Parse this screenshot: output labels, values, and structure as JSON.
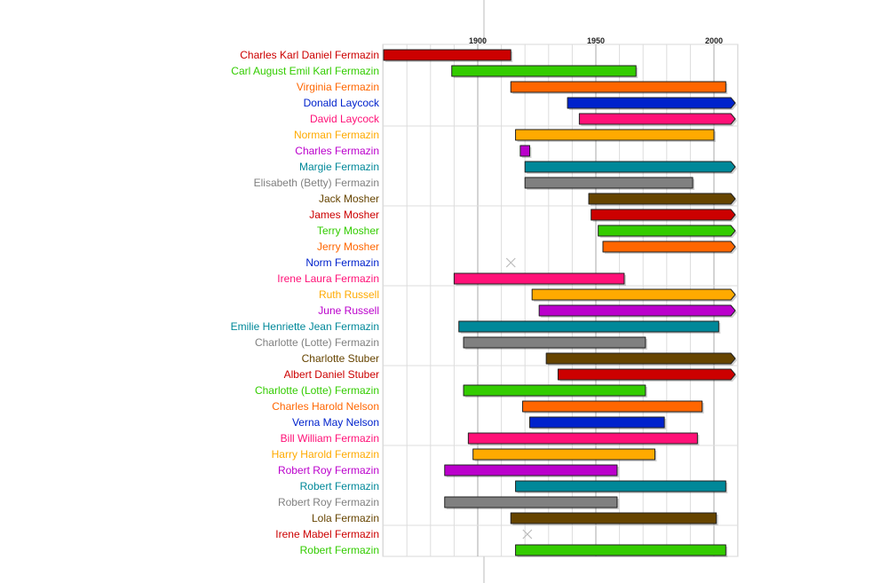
{
  "chart_data": {
    "type": "timeline",
    "title": "",
    "xlabel": "",
    "ylabel": "",
    "xlim": [
      1860,
      2011
    ],
    "x_ticks": [
      "1900",
      "1950",
      "2000"
    ],
    "grid": true,
    "palette": [
      "#cc0000",
      "#33cc00",
      "#ff6600",
      "#0022cc",
      "#ff1177",
      "#ffaa00",
      "#bb00cc",
      "#008899",
      "#808080",
      "#664400"
    ],
    "rows": [
      {
        "name": "Charles Karl Daniel Fermazin",
        "start": 1860,
        "end": 1914,
        "color": "#cc0000",
        "ongoing": false
      },
      {
        "name": "Carl August Emil Karl Fermazin",
        "start": 1889,
        "end": 1967,
        "color": "#33cc00",
        "ongoing": false
      },
      {
        "name": "Virginia Fermazin",
        "start": 1914,
        "end": 2005,
        "color": "#ff6600",
        "ongoing": false
      },
      {
        "name": "Donald Laycock",
        "start": 1938,
        "end": 2011,
        "color": "#0022cc",
        "ongoing": true
      },
      {
        "name": "David Laycock",
        "start": 1943,
        "end": 2011,
        "color": "#ff1177",
        "ongoing": true
      },
      {
        "name": "Norman Fermazin",
        "start": 1916,
        "end": 2000,
        "color": "#ffaa00",
        "ongoing": false
      },
      {
        "name": "Charles Fermazin",
        "start": 1918,
        "end": 1922,
        "color": "#bb00cc",
        "ongoing": false
      },
      {
        "name": "Margie Fermazin",
        "start": 1920,
        "end": 2011,
        "color": "#008899",
        "ongoing": true
      },
      {
        "name": "Elisabeth (Betty) Fermazin",
        "start": 1920,
        "end": 1991,
        "color": "#808080",
        "ongoing": false
      },
      {
        "name": "Jack Mosher",
        "start": 1947,
        "end": 2011,
        "color": "#664400",
        "ongoing": true
      },
      {
        "name": "James Mosher",
        "start": 1948,
        "end": 2011,
        "color": "#cc0000",
        "ongoing": true
      },
      {
        "name": "Terry Mosher",
        "start": 1951,
        "end": 2011,
        "color": "#33cc00",
        "ongoing": true
      },
      {
        "name": "Jerry Mosher",
        "start": 1953,
        "end": 2011,
        "color": "#ff6600",
        "ongoing": true
      },
      {
        "name": "Norm Fermazin",
        "start": 1914,
        "end": 1914,
        "color": "#0022cc",
        "unknown": true
      },
      {
        "name": "Irene Laura Fermazin",
        "start": 1890,
        "end": 1962,
        "color": "#ff1177",
        "ongoing": false
      },
      {
        "name": "Ruth Russell",
        "start": 1923,
        "end": 2011,
        "color": "#ffaa00",
        "ongoing": true
      },
      {
        "name": "June Russell",
        "start": 1926,
        "end": 2011,
        "color": "#bb00cc",
        "ongoing": true
      },
      {
        "name": "Emilie Henriette Jean Fermazin",
        "start": 1892,
        "end": 2002,
        "color": "#008899",
        "ongoing": false
      },
      {
        "name": "Charlotte (Lotte) Fermazin",
        "start": 1894,
        "end": 1971,
        "color": "#808080",
        "ongoing": false
      },
      {
        "name": "Charlotte Stuber",
        "start": 1929,
        "end": 2011,
        "color": "#664400",
        "ongoing": true
      },
      {
        "name": "Albert Daniel Stuber",
        "start": 1934,
        "end": 2011,
        "color": "#cc0000",
        "ongoing": true
      },
      {
        "name": "Charlotte (Lotte) Fermazin",
        "start": 1894,
        "end": 1971,
        "color": "#33cc00",
        "ongoing": false
      },
      {
        "name": "Charles Harold Nelson",
        "start": 1919,
        "end": 1995,
        "color": "#ff6600",
        "ongoing": false
      },
      {
        "name": "Verna May Nelson",
        "start": 1922,
        "end": 1979,
        "color": "#0022cc",
        "ongoing": false
      },
      {
        "name": "Bill William Fermazin",
        "start": 1896,
        "end": 1993,
        "color": "#ff1177",
        "ongoing": false
      },
      {
        "name": "Harry Harold Fermazin",
        "start": 1898,
        "end": 1975,
        "color": "#ffaa00",
        "ongoing": false
      },
      {
        "name": "Robert Roy Fermazin",
        "start": 1886,
        "end": 1959,
        "color": "#bb00cc",
        "ongoing": false
      },
      {
        "name": "Robert Fermazin",
        "start": 1916,
        "end": 2005,
        "color": "#008899",
        "ongoing": false
      },
      {
        "name": "Robert Roy Fermazin",
        "start": 1886,
        "end": 1959,
        "color": "#808080",
        "ongoing": false
      },
      {
        "name": "Lola Fermazin",
        "start": 1914,
        "end": 2001,
        "color": "#664400",
        "ongoing": false
      },
      {
        "name": "Irene Mabel Fermazin",
        "start": 1921,
        "end": 1921,
        "color": "#cc0000",
        "unknown": true
      },
      {
        "name": "Robert Fermazin",
        "start": 1916,
        "end": 2005,
        "color": "#33cc00",
        "ongoing": false
      }
    ]
  }
}
